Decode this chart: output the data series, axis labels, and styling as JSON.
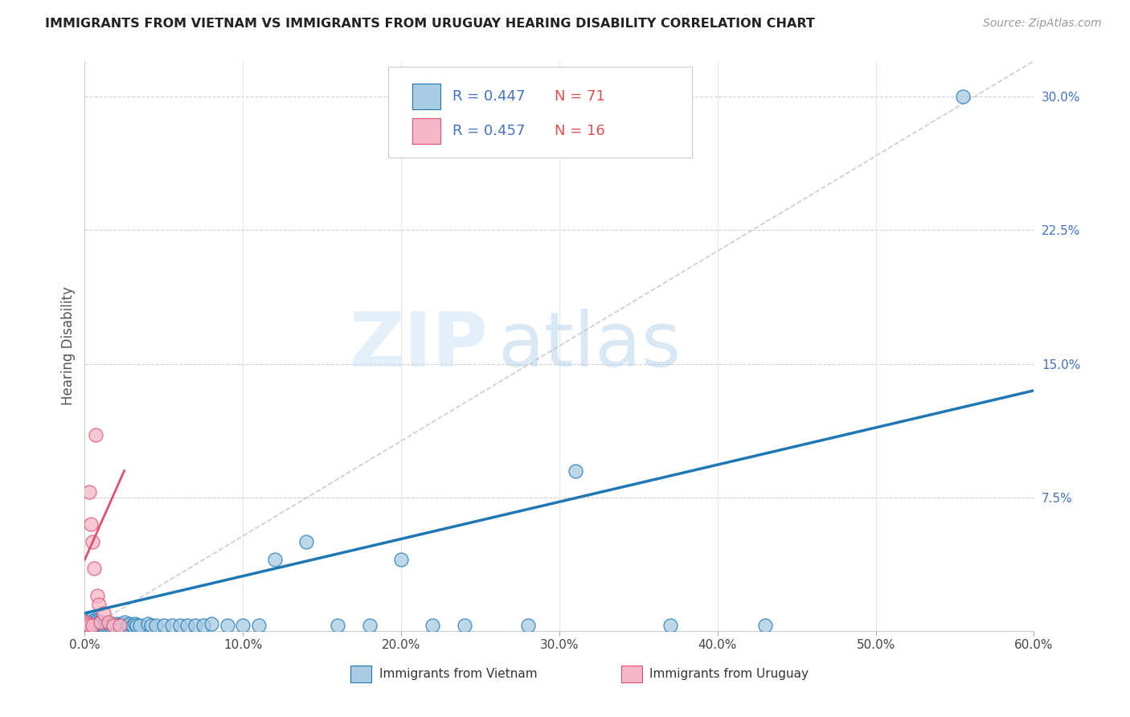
{
  "title": "IMMIGRANTS FROM VIETNAM VS IMMIGRANTS FROM URUGUAY HEARING DISABILITY CORRELATION CHART",
  "source": "Source: ZipAtlas.com",
  "ylabel": "Hearing Disability",
  "legend_label_1": "Immigrants from Vietnam",
  "legend_label_2": "Immigrants from Uruguay",
  "R1": 0.447,
  "N1": 71,
  "R2": 0.457,
  "N2": 16,
  "xlim": [
    0,
    0.6
  ],
  "ylim": [
    0,
    0.32
  ],
  "xticks": [
    0.0,
    0.1,
    0.2,
    0.3,
    0.4,
    0.5,
    0.6
  ],
  "yticks_right": [
    0.0,
    0.075,
    0.15,
    0.225,
    0.3
  ],
  "color_vietnam": "#a8cce4",
  "color_uruguay": "#f4b8c8",
  "trendline_vietnam_color": "#1f77b4",
  "trendline_uruguay_color": "#e05070",
  "watermark_zip": "ZIP",
  "watermark_atlas": "atlas",
  "background_color": "#ffffff",
  "vietnam_x": [
    0.001,
    0.002,
    0.002,
    0.003,
    0.003,
    0.003,
    0.004,
    0.004,
    0.004,
    0.005,
    0.005,
    0.005,
    0.005,
    0.006,
    0.006,
    0.006,
    0.007,
    0.007,
    0.007,
    0.008,
    0.008,
    0.008,
    0.009,
    0.009,
    0.01,
    0.01,
    0.011,
    0.011,
    0.012,
    0.013,
    0.014,
    0.015,
    0.016,
    0.017,
    0.018,
    0.02,
    0.022,
    0.023,
    0.024,
    0.025,
    0.027,
    0.028,
    0.03,
    0.032,
    0.033,
    0.035,
    0.04,
    0.042,
    0.045,
    0.05,
    0.055,
    0.06,
    0.065,
    0.07,
    0.075,
    0.08,
    0.09,
    0.1,
    0.11,
    0.12,
    0.14,
    0.16,
    0.18,
    0.2,
    0.22,
    0.24,
    0.28,
    0.31,
    0.37,
    0.43,
    0.555
  ],
  "vietnam_y": [
    0.005,
    0.003,
    0.006,
    0.003,
    0.005,
    0.007,
    0.003,
    0.004,
    0.006,
    0.003,
    0.004,
    0.005,
    0.007,
    0.003,
    0.004,
    0.006,
    0.003,
    0.004,
    0.005,
    0.003,
    0.004,
    0.006,
    0.003,
    0.005,
    0.003,
    0.005,
    0.003,
    0.004,
    0.003,
    0.004,
    0.003,
    0.004,
    0.003,
    0.004,
    0.003,
    0.004,
    0.003,
    0.004,
    0.003,
    0.005,
    0.003,
    0.004,
    0.003,
    0.004,
    0.003,
    0.003,
    0.004,
    0.003,
    0.003,
    0.003,
    0.003,
    0.003,
    0.003,
    0.003,
    0.003,
    0.004,
    0.003,
    0.003,
    0.003,
    0.04,
    0.05,
    0.003,
    0.003,
    0.04,
    0.003,
    0.003,
    0.003,
    0.09,
    0.003,
    0.003,
    0.3
  ],
  "uruguay_x": [
    0.001,
    0.002,
    0.003,
    0.003,
    0.004,
    0.005,
    0.005,
    0.006,
    0.007,
    0.008,
    0.009,
    0.01,
    0.012,
    0.015,
    0.018,
    0.022
  ],
  "uruguay_y": [
    0.005,
    0.004,
    0.003,
    0.078,
    0.06,
    0.003,
    0.05,
    0.035,
    0.11,
    0.02,
    0.015,
    0.005,
    0.01,
    0.005,
    0.003,
    0.003
  ],
  "trendline_viet_x0": 0.0,
  "trendline_viet_y0": 0.01,
  "trendline_viet_x1": 0.6,
  "trendline_viet_y1": 0.135,
  "trendline_uru_x0": 0.0,
  "trendline_uru_y0": 0.04,
  "trendline_uru_x1": 0.025,
  "trendline_uru_y1": 0.09
}
